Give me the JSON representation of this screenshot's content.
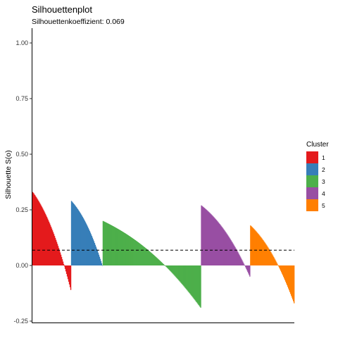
{
  "chart_data": {
    "type": "bar",
    "title": "Silhouettenplot",
    "subtitle": "Silhouettenkoeffizient: 0.069",
    "ylabel": "Silhouette S(o)",
    "xlabel": "",
    "ylim": [
      -0.25,
      1.0
    ],
    "yticks": [
      "1.00",
      "0.75",
      "0.50",
      "0.25",
      "0.00",
      "-0.25"
    ],
    "ytick_values": [
      1.0,
      0.75,
      0.5,
      0.25,
      0.0,
      -0.25
    ],
    "mean_line": 0.069,
    "legend": {
      "title": "Cluster",
      "position": "right",
      "entries": [
        "1",
        "2",
        "3",
        "4",
        "5"
      ]
    },
    "clusters": [
      {
        "name": "1",
        "color": "#E41A1C",
        "n": 55,
        "max": 0.33,
        "min": -0.11
      },
      {
        "name": "2",
        "color": "#377EB8",
        "n": 45,
        "max": 0.29,
        "min": 0.0
      },
      {
        "name": "3",
        "color": "#4DAF4A",
        "n": 140,
        "max": 0.2,
        "min": -0.19
      },
      {
        "name": "4",
        "color": "#984EA3",
        "n": 70,
        "max": 0.27,
        "min": -0.05
      },
      {
        "name": "5",
        "color": "#FF7F00",
        "n": 63,
        "max": 0.18,
        "min": -0.17
      }
    ]
  }
}
